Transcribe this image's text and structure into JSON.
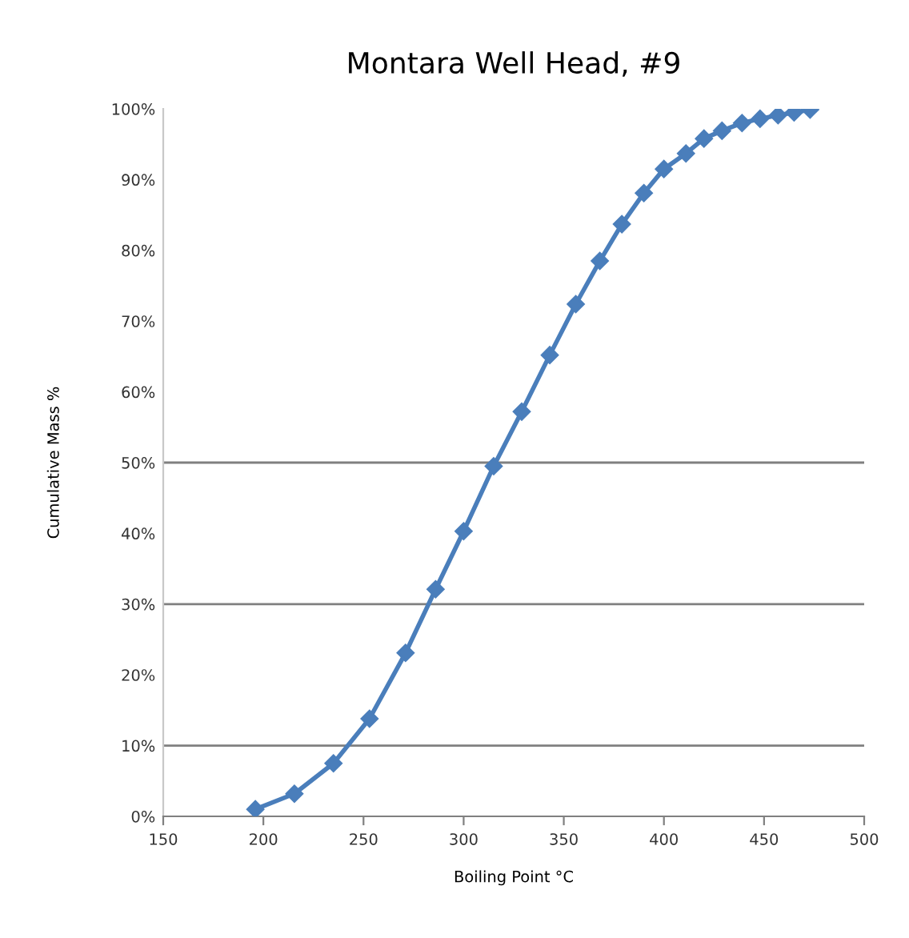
{
  "chart_data": {
    "type": "line",
    "title": "Montara Well Head, #9",
    "xlabel": "Boiling Point °C",
    "ylabel": "Cumulative Mass %",
    "series": [
      {
        "color": "#4a7ebb",
        "x": [
          196,
          215.5,
          235,
          253,
          271,
          286,
          300,
          315,
          329,
          343,
          356,
          368,
          379,
          390,
          400,
          411,
          420,
          429,
          439,
          448,
          457,
          465,
          473
        ],
        "values": [
          1,
          3.2,
          7.5,
          13.8,
          23.1,
          32.1,
          40.3,
          49.5,
          57.2,
          65.2,
          72.4,
          78.5,
          83.7,
          88.1,
          91.5,
          93.7,
          95.8,
          96.9,
          98.0,
          98.6,
          99.1,
          99.5,
          99.9
        ]
      }
    ],
    "marker": "diamond",
    "line_style": "solid",
    "grid": false,
    "legend": false,
    "xlim": [
      150,
      500
    ],
    "xticks": [
      150,
      200,
      250,
      300,
      350,
      400,
      450,
      500
    ],
    "ylim": [
      0,
      100
    ],
    "yticks": [
      {
        "value": 0,
        "label": "0%"
      },
      {
        "value": 10,
        "label": "10%"
      },
      {
        "value": 20,
        "label": "20%"
      },
      {
        "value": 30,
        "label": "30%"
      },
      {
        "value": 40,
        "label": "40%"
      },
      {
        "value": 50,
        "label": "50%"
      },
      {
        "value": 60,
        "label": "60%"
      },
      {
        "value": 70,
        "label": "70%"
      },
      {
        "value": 80,
        "label": "80%"
      },
      {
        "value": 90,
        "label": "90%"
      },
      {
        "value": 100,
        "label": "100%"
      }
    ],
    "ref_lines": [
      {
        "axis": "y",
        "value": 10,
        "color": "#808080"
      },
      {
        "axis": "y",
        "value": 30,
        "color": "#808080"
      },
      {
        "axis": "y",
        "value": 50,
        "color": "#808080"
      }
    ]
  }
}
